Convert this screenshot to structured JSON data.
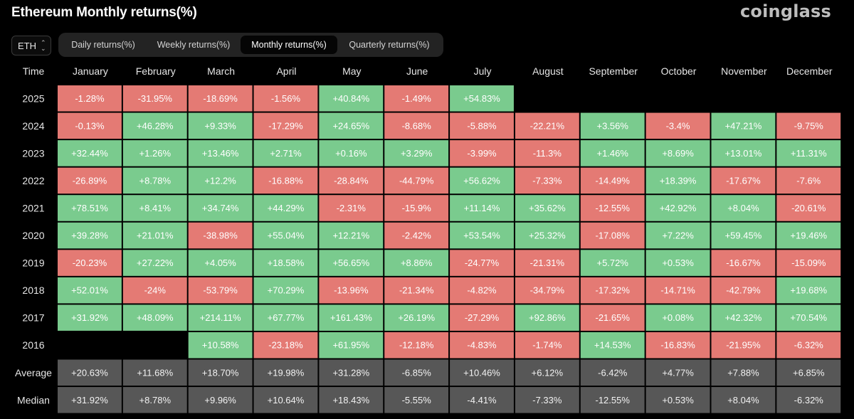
{
  "page": {
    "title": "Ethereum Monthly returns(%)",
    "logo": "coinglass"
  },
  "controls": {
    "asset": "ETH",
    "tabs": [
      "Daily returns(%)",
      "Weekly returns(%)",
      "Monthly returns(%)",
      "Quarterly returns(%)"
    ],
    "active_tab": "Monthly returns(%)"
  },
  "colors": {
    "positive": "#7acb8e",
    "negative": "#e47a74",
    "summary": "#575757",
    "background": "#000000"
  },
  "chart_data": {
    "type": "heatmap",
    "title": "Ethereum Monthly returns(%)",
    "row_header": "Time",
    "columns": [
      "January",
      "February",
      "March",
      "April",
      "May",
      "June",
      "July",
      "August",
      "September",
      "October",
      "November",
      "December"
    ],
    "rows": [
      {
        "label": "2025",
        "cells": [
          "-1.28%",
          "-31.95%",
          "-18.69%",
          "-1.56%",
          "+40.84%",
          "-1.49%",
          "+54.83%",
          "",
          "",
          "",
          "",
          ""
        ]
      },
      {
        "label": "2024",
        "cells": [
          "-0.13%",
          "+46.28%",
          "+9.33%",
          "-17.29%",
          "+24.65%",
          "-8.68%",
          "-5.88%",
          "-22.21%",
          "+3.56%",
          "-3.4%",
          "+47.21%",
          "-9.75%"
        ]
      },
      {
        "label": "2023",
        "cells": [
          "+32.44%",
          "+1.26%",
          "+13.46%",
          "+2.71%",
          "+0.16%",
          "+3.29%",
          "-3.99%",
          "-11.3%",
          "+1.46%",
          "+8.69%",
          "+13.01%",
          "+11.31%"
        ]
      },
      {
        "label": "2022",
        "cells": [
          "-26.89%",
          "+8.78%",
          "+12.2%",
          "-16.88%",
          "-28.84%",
          "-44.79%",
          "+56.62%",
          "-7.33%",
          "-14.49%",
          "+18.39%",
          "-17.67%",
          "-7.6%"
        ]
      },
      {
        "label": "2021",
        "cells": [
          "+78.51%",
          "+8.41%",
          "+34.74%",
          "+44.29%",
          "-2.31%",
          "-15.9%",
          "+11.14%",
          "+35.62%",
          "-12.55%",
          "+42.92%",
          "+8.04%",
          "-20.61%"
        ]
      },
      {
        "label": "2020",
        "cells": [
          "+39.28%",
          "+21.01%",
          "-38.98%",
          "+55.04%",
          "+12.21%",
          "-2.42%",
          "+53.54%",
          "+25.32%",
          "-17.08%",
          "+7.22%",
          "+59.45%",
          "+19.46%"
        ]
      },
      {
        "label": "2019",
        "cells": [
          "-20.23%",
          "+27.22%",
          "+4.05%",
          "+18.58%",
          "+56.65%",
          "+8.86%",
          "-24.77%",
          "-21.31%",
          "+5.72%",
          "+0.53%",
          "-16.67%",
          "-15.09%"
        ]
      },
      {
        "label": "2018",
        "cells": [
          "+52.01%",
          "-24%",
          "-53.79%",
          "+70.29%",
          "-13.96%",
          "-21.34%",
          "-4.82%",
          "-34.79%",
          "-17.32%",
          "-14.71%",
          "-42.79%",
          "+19.68%"
        ]
      },
      {
        "label": "2017",
        "cells": [
          "+31.92%",
          "+48.09%",
          "+214.11%",
          "+67.77%",
          "+161.43%",
          "+26.19%",
          "-27.29%",
          "+92.86%",
          "-21.65%",
          "+0.08%",
          "+42.32%",
          "+70.54%"
        ]
      },
      {
        "label": "2016",
        "cells": [
          "",
          "",
          "+10.58%",
          "-23.18%",
          "+61.95%",
          "-12.18%",
          "-4.83%",
          "-1.74%",
          "+14.53%",
          "-16.83%",
          "-21.95%",
          "-6.32%"
        ]
      }
    ],
    "summary_rows": [
      {
        "label": "Average",
        "cells": [
          "+20.63%",
          "+11.68%",
          "+18.70%",
          "+19.98%",
          "+31.28%",
          "-6.85%",
          "+10.46%",
          "+6.12%",
          "-6.42%",
          "+4.77%",
          "+7.88%",
          "+6.85%"
        ]
      },
      {
        "label": "Median",
        "cells": [
          "+31.92%",
          "+8.78%",
          "+9.96%",
          "+10.64%",
          "+18.43%",
          "-5.55%",
          "-4.41%",
          "-7.33%",
          "-12.55%",
          "+0.53%",
          "+8.04%",
          "-6.32%"
        ]
      }
    ]
  }
}
